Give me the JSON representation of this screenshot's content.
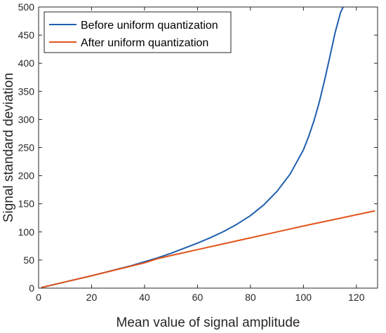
{
  "chart_data": {
    "type": "line",
    "title": "",
    "xlabel": "Mean value of signal amplitude",
    "ylabel": "Signal standard deviation",
    "xlim": [
      0,
      128
    ],
    "ylim": [
      0,
      500
    ],
    "xticks": [
      0,
      20,
      40,
      60,
      80,
      100,
      120
    ],
    "yticks": [
      0,
      50,
      100,
      150,
      200,
      250,
      300,
      350,
      400,
      450,
      500
    ],
    "grid": false,
    "legend_position": "top-left",
    "series": [
      {
        "name": "Before uniform quantization",
        "color": "#1f5fae",
        "x": [
          1,
          5,
          10,
          15,
          20,
          25,
          30,
          35,
          40,
          45,
          50,
          55,
          60,
          65,
          70,
          75,
          80,
          85,
          90,
          95,
          100,
          102,
          104,
          106,
          108,
          110,
          112,
          114,
          115
        ],
        "y": [
          1,
          5.5,
          11,
          16.5,
          22,
          28,
          34,
          40,
          47,
          54,
          62,
          71,
          80,
          90,
          101,
          114,
          129,
          148,
          172,
          203,
          246,
          270,
          298,
          331,
          370,
          412,
          455,
          490,
          500
        ]
      },
      {
        "name": "After  uniform quantization",
        "color": "#e2541b",
        "x": [
          1,
          10,
          20,
          30,
          40,
          45,
          50,
          60,
          70,
          80,
          90,
          100,
          110,
          120,
          127
        ],
        "y": [
          1,
          11,
          22,
          33.5,
          45,
          52.5,
          58,
          68.5,
          79,
          89.5,
          100,
          110.5,
          120.5,
          130.5,
          137.5
        ]
      }
    ]
  }
}
